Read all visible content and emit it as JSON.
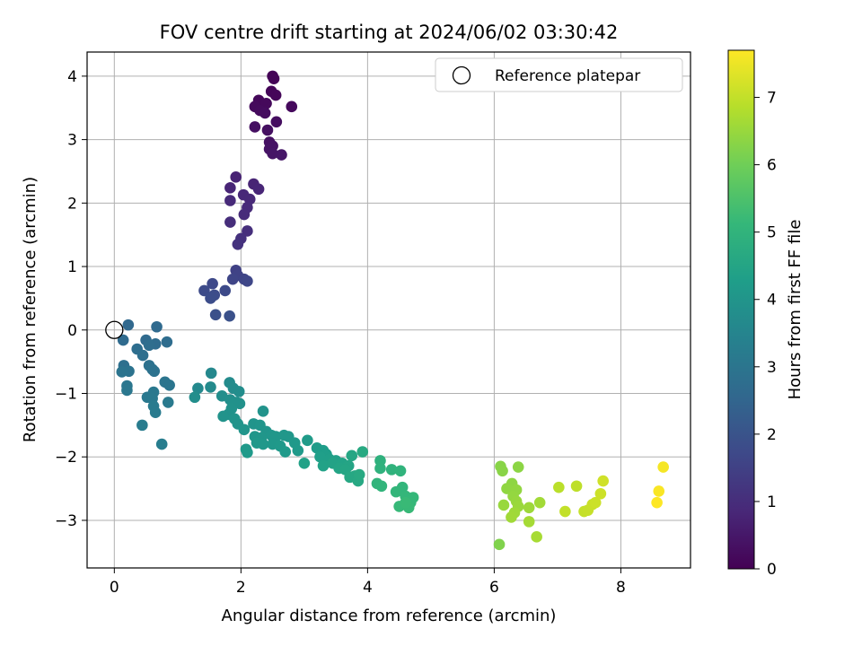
{
  "chart_data": {
    "type": "scatter",
    "title": "FOV centre drift starting at 2024/06/02 03:30:42",
    "xlabel": "Angular distance from reference (arcmin)",
    "ylabel": "Rotation from reference (arcmin)",
    "xlim": [
      -0.43,
      9.1
    ],
    "ylim": [
      -3.75,
      4.38
    ],
    "xticks": [
      0,
      2,
      4,
      6,
      8
    ],
    "yticks": [
      -3,
      -2,
      -1,
      0,
      1,
      2,
      3,
      4
    ],
    "grid": true,
    "legend": {
      "position": "top-right",
      "entries": [
        "Reference platepar"
      ]
    },
    "reference_point": {
      "x": 0,
      "y": 0
    },
    "colorbar": {
      "label": "Hours from first FF file",
      "range": [
        0,
        7.7
      ],
      "ticks": [
        0,
        1,
        2,
        3,
        4,
        5,
        6,
        7
      ],
      "colormap": "viridis",
      "colors": [
        "#440154",
        "#482878",
        "#3e4989",
        "#31688e",
        "#26828e",
        "#1f9e89",
        "#35b779",
        "#6ece58",
        "#b5de2b",
        "#fde725"
      ]
    },
    "points": [
      {
        "x": 2.5,
        "y": 4.0,
        "c": 0.05
      },
      {
        "x": 2.52,
        "y": 3.96,
        "c": 0.08
      },
      {
        "x": 2.48,
        "y": 3.76,
        "c": 0.1
      },
      {
        "x": 2.55,
        "y": 3.7,
        "c": 0.12
      },
      {
        "x": 2.28,
        "y": 3.62,
        "c": 0.15
      },
      {
        "x": 2.4,
        "y": 3.57,
        "c": 0.17
      },
      {
        "x": 2.22,
        "y": 3.52,
        "c": 0.2
      },
      {
        "x": 2.3,
        "y": 3.46,
        "c": 0.22
      },
      {
        "x": 2.38,
        "y": 3.42,
        "c": 0.25
      },
      {
        "x": 2.8,
        "y": 3.52,
        "c": 0.18
      },
      {
        "x": 2.56,
        "y": 3.28,
        "c": 0.28
      },
      {
        "x": 2.22,
        "y": 3.2,
        "c": 0.3
      },
      {
        "x": 2.42,
        "y": 3.15,
        "c": 0.32
      },
      {
        "x": 2.45,
        "y": 2.96,
        "c": 0.35
      },
      {
        "x": 2.5,
        "y": 2.9,
        "c": 0.38
      },
      {
        "x": 2.45,
        "y": 2.85,
        "c": 0.4
      },
      {
        "x": 2.5,
        "y": 2.78,
        "c": 0.43
      },
      {
        "x": 2.64,
        "y": 2.76,
        "c": 0.45
      },
      {
        "x": 1.92,
        "y": 2.41,
        "c": 0.75
      },
      {
        "x": 1.83,
        "y": 2.24,
        "c": 0.8
      },
      {
        "x": 2.2,
        "y": 2.3,
        "c": 0.78
      },
      {
        "x": 2.28,
        "y": 2.22,
        "c": 0.82
      },
      {
        "x": 2.04,
        "y": 2.13,
        "c": 0.85
      },
      {
        "x": 2.14,
        "y": 2.06,
        "c": 0.88
      },
      {
        "x": 1.83,
        "y": 2.04,
        "c": 0.9
      },
      {
        "x": 2.1,
        "y": 1.93,
        "c": 0.93
      },
      {
        "x": 2.05,
        "y": 1.82,
        "c": 0.95
      },
      {
        "x": 1.83,
        "y": 1.7,
        "c": 1.0
      },
      {
        "x": 2.1,
        "y": 1.56,
        "c": 1.05
      },
      {
        "x": 2.0,
        "y": 1.44,
        "c": 1.1
      },
      {
        "x": 1.95,
        "y": 1.35,
        "c": 1.15
      },
      {
        "x": 1.92,
        "y": 0.94,
        "c": 1.5
      },
      {
        "x": 1.95,
        "y": 0.86,
        "c": 1.55
      },
      {
        "x": 2.05,
        "y": 0.8,
        "c": 1.6
      },
      {
        "x": 1.87,
        "y": 0.8,
        "c": 1.62
      },
      {
        "x": 2.1,
        "y": 0.77,
        "c": 1.65
      },
      {
        "x": 1.55,
        "y": 0.73,
        "c": 1.7
      },
      {
        "x": 1.75,
        "y": 0.62,
        "c": 1.75
      },
      {
        "x": 1.42,
        "y": 0.62,
        "c": 1.78
      },
      {
        "x": 1.58,
        "y": 0.55,
        "c": 1.8
      },
      {
        "x": 1.52,
        "y": 0.5,
        "c": 1.82
      },
      {
        "x": 1.6,
        "y": 0.24,
        "c": 1.9
      },
      {
        "x": 1.82,
        "y": 0.22,
        "c": 1.92
      },
      {
        "x": 0.22,
        "y": 0.08,
        "c": 2.6
      },
      {
        "x": 0.67,
        "y": 0.05,
        "c": 2.62
      },
      {
        "x": 0.14,
        "y": -0.16,
        "c": 2.65
      },
      {
        "x": 0.5,
        "y": -0.16,
        "c": 2.68
      },
      {
        "x": 0.65,
        "y": -0.22,
        "c": 2.7
      },
      {
        "x": 0.83,
        "y": -0.19,
        "c": 2.72
      },
      {
        "x": 0.55,
        "y": -0.24,
        "c": 2.75
      },
      {
        "x": 0.36,
        "y": -0.3,
        "c": 2.78
      },
      {
        "x": 0.45,
        "y": -0.4,
        "c": 2.8
      },
      {
        "x": 0.15,
        "y": -0.56,
        "c": 2.82
      },
      {
        "x": 0.55,
        "y": -0.56,
        "c": 2.85
      },
      {
        "x": 0.6,
        "y": -0.62,
        "c": 2.88
      },
      {
        "x": 0.63,
        "y": -0.65,
        "c": 2.9
      },
      {
        "x": 0.23,
        "y": -0.65,
        "c": 2.92
      },
      {
        "x": 0.12,
        "y": -0.66,
        "c": 2.95
      },
      {
        "x": 0.8,
        "y": -0.82,
        "c": 2.98
      },
      {
        "x": 0.87,
        "y": -0.87,
        "c": 3.0
      },
      {
        "x": 0.2,
        "y": -0.88,
        "c": 3.02
      },
      {
        "x": 0.2,
        "y": -0.95,
        "c": 3.05
      },
      {
        "x": 0.62,
        "y": -0.98,
        "c": 3.08
      },
      {
        "x": 0.52,
        "y": -1.06,
        "c": 3.1
      },
      {
        "x": 0.6,
        "y": -1.08,
        "c": 3.12
      },
      {
        "x": 0.85,
        "y": -1.14,
        "c": 3.15
      },
      {
        "x": 0.62,
        "y": -1.2,
        "c": 3.18
      },
      {
        "x": 0.65,
        "y": -1.3,
        "c": 3.2
      },
      {
        "x": 0.44,
        "y": -1.5,
        "c": 3.22
      },
      {
        "x": 0.75,
        "y": -1.8,
        "c": 3.25
      },
      {
        "x": 1.53,
        "y": -0.68,
        "c": 3.6
      },
      {
        "x": 1.32,
        "y": -0.92,
        "c": 3.65
      },
      {
        "x": 1.52,
        "y": -0.9,
        "c": 3.68
      },
      {
        "x": 1.82,
        "y": -0.83,
        "c": 3.7
      },
      {
        "x": 1.88,
        "y": -0.92,
        "c": 3.72
      },
      {
        "x": 1.97,
        "y": -0.97,
        "c": 3.75
      },
      {
        "x": 1.27,
        "y": -1.06,
        "c": 3.78
      },
      {
        "x": 1.7,
        "y": -1.04,
        "c": 3.8
      },
      {
        "x": 1.83,
        "y": -1.1,
        "c": 3.82
      },
      {
        "x": 1.93,
        "y": -1.14,
        "c": 3.85
      },
      {
        "x": 1.88,
        "y": -1.16,
        "c": 3.87
      },
      {
        "x": 1.98,
        "y": -1.16,
        "c": 3.88
      },
      {
        "x": 1.85,
        "y": -1.24,
        "c": 3.9
      },
      {
        "x": 1.8,
        "y": -1.33,
        "c": 3.92
      },
      {
        "x": 1.72,
        "y": -1.36,
        "c": 3.94
      },
      {
        "x": 2.35,
        "y": -1.28,
        "c": 3.95
      },
      {
        "x": 1.9,
        "y": -1.4,
        "c": 3.96
      },
      {
        "x": 1.95,
        "y": -1.48,
        "c": 3.97
      },
      {
        "x": 2.2,
        "y": -1.48,
        "c": 3.98
      },
      {
        "x": 2.3,
        "y": -1.5,
        "c": 3.99
      },
      {
        "x": 2.05,
        "y": -1.57,
        "c": 4.0
      },
      {
        "x": 2.4,
        "y": -1.6,
        "c": 4.01
      },
      {
        "x": 2.48,
        "y": -1.66,
        "c": 4.02
      },
      {
        "x": 2.22,
        "y": -1.68,
        "c": 4.03
      },
      {
        "x": 2.32,
        "y": -1.7,
        "c": 4.04
      },
      {
        "x": 2.55,
        "y": -1.68,
        "c": 4.05
      },
      {
        "x": 2.68,
        "y": -1.66,
        "c": 4.06
      },
      {
        "x": 2.75,
        "y": -1.68,
        "c": 4.07
      },
      {
        "x": 2.25,
        "y": -1.78,
        "c": 4.08
      },
      {
        "x": 2.35,
        "y": -1.8,
        "c": 4.09
      },
      {
        "x": 2.5,
        "y": -1.8,
        "c": 4.1
      },
      {
        "x": 2.85,
        "y": -1.78,
        "c": 4.12
      },
      {
        "x": 2.62,
        "y": -1.83,
        "c": 4.13
      },
      {
        "x": 2.08,
        "y": -1.88,
        "c": 4.14
      },
      {
        "x": 2.1,
        "y": -1.93,
        "c": 4.15
      },
      {
        "x": 2.7,
        "y": -1.92,
        "c": 4.16
      },
      {
        "x": 2.9,
        "y": -1.9,
        "c": 4.17
      },
      {
        "x": 3.05,
        "y": -1.74,
        "c": 4.2
      },
      {
        "x": 3.2,
        "y": -1.86,
        "c": 4.22
      },
      {
        "x": 3.3,
        "y": -1.9,
        "c": 4.25
      },
      {
        "x": 3.35,
        "y": -1.96,
        "c": 4.28
      },
      {
        "x": 3.25,
        "y": -2.0,
        "c": 4.3
      },
      {
        "x": 3.4,
        "y": -2.04,
        "c": 4.32
      },
      {
        "x": 3.5,
        "y": -2.06,
        "c": 4.35
      },
      {
        "x": 3.0,
        "y": -2.1,
        "c": 4.38
      },
      {
        "x": 3.3,
        "y": -2.14,
        "c": 4.4
      },
      {
        "x": 3.45,
        "y": -2.1,
        "c": 4.42
      },
      {
        "x": 3.6,
        "y": -2.1,
        "c": 4.45
      },
      {
        "x": 3.55,
        "y": -2.18,
        "c": 4.48
      },
      {
        "x": 3.7,
        "y": -2.14,
        "c": 4.5
      },
      {
        "x": 3.65,
        "y": -2.2,
        "c": 4.52
      },
      {
        "x": 3.75,
        "y": -1.98,
        "c": 4.55
      },
      {
        "x": 3.8,
        "y": -2.3,
        "c": 4.58
      },
      {
        "x": 3.72,
        "y": -2.32,
        "c": 4.6
      },
      {
        "x": 3.85,
        "y": -2.38,
        "c": 4.62
      },
      {
        "x": 3.92,
        "y": -1.92,
        "c": 4.65
      },
      {
        "x": 3.87,
        "y": -2.28,
        "c": 4.66
      },
      {
        "x": 4.2,
        "y": -2.06,
        "c": 4.9
      },
      {
        "x": 4.2,
        "y": -2.18,
        "c": 4.92
      },
      {
        "x": 4.38,
        "y": -2.2,
        "c": 4.95
      },
      {
        "x": 4.52,
        "y": -2.22,
        "c": 4.98
      },
      {
        "x": 4.15,
        "y": -2.42,
        "c": 5.0
      },
      {
        "x": 4.22,
        "y": -2.46,
        "c": 5.02
      },
      {
        "x": 4.55,
        "y": -2.48,
        "c": 5.05
      },
      {
        "x": 4.45,
        "y": -2.55,
        "c": 5.08
      },
      {
        "x": 4.6,
        "y": -2.62,
        "c": 5.1
      },
      {
        "x": 4.72,
        "y": -2.64,
        "c": 5.12
      },
      {
        "x": 4.68,
        "y": -2.72,
        "c": 5.14
      },
      {
        "x": 4.5,
        "y": -2.78,
        "c": 5.16
      },
      {
        "x": 4.65,
        "y": -2.8,
        "c": 5.18
      },
      {
        "x": 4.6,
        "y": -2.72,
        "c": 5.2
      },
      {
        "x": 6.1,
        "y": -2.15,
        "c": 6.3
      },
      {
        "x": 6.13,
        "y": -2.22,
        "c": 6.32
      },
      {
        "x": 6.38,
        "y": -2.16,
        "c": 6.35
      },
      {
        "x": 6.28,
        "y": -2.42,
        "c": 6.38
      },
      {
        "x": 6.2,
        "y": -2.5,
        "c": 6.4
      },
      {
        "x": 6.35,
        "y": -2.52,
        "c": 6.42
      },
      {
        "x": 6.3,
        "y": -2.62,
        "c": 6.45
      },
      {
        "x": 6.35,
        "y": -2.7,
        "c": 6.48
      },
      {
        "x": 6.15,
        "y": -2.76,
        "c": 6.5
      },
      {
        "x": 6.38,
        "y": -2.78,
        "c": 6.52
      },
      {
        "x": 6.55,
        "y": -2.8,
        "c": 6.55
      },
      {
        "x": 6.32,
        "y": -2.88,
        "c": 6.58
      },
      {
        "x": 6.27,
        "y": -2.95,
        "c": 6.6
      },
      {
        "x": 6.72,
        "y": -2.72,
        "c": 6.62
      },
      {
        "x": 6.55,
        "y": -3.02,
        "c": 6.65
      },
      {
        "x": 6.67,
        "y": -3.26,
        "c": 6.68
      },
      {
        "x": 6.08,
        "y": -3.38,
        "c": 6.2
      },
      {
        "x": 7.02,
        "y": -2.48,
        "c": 6.9
      },
      {
        "x": 7.3,
        "y": -2.46,
        "c": 6.95
      },
      {
        "x": 7.12,
        "y": -2.86,
        "c": 7.0
      },
      {
        "x": 7.42,
        "y": -2.86,
        "c": 7.02
      },
      {
        "x": 7.48,
        "y": -2.84,
        "c": 7.05
      },
      {
        "x": 7.55,
        "y": -2.75,
        "c": 7.08
      },
      {
        "x": 7.6,
        "y": -2.72,
        "c": 7.1
      },
      {
        "x": 7.68,
        "y": -2.58,
        "c": 7.12
      },
      {
        "x": 7.72,
        "y": -2.38,
        "c": 7.15
      },
      {
        "x": 8.67,
        "y": -2.16,
        "c": 7.6
      },
      {
        "x": 8.6,
        "y": -2.54,
        "c": 7.65
      },
      {
        "x": 8.57,
        "y": -2.72,
        "c": 7.7
      }
    ]
  }
}
